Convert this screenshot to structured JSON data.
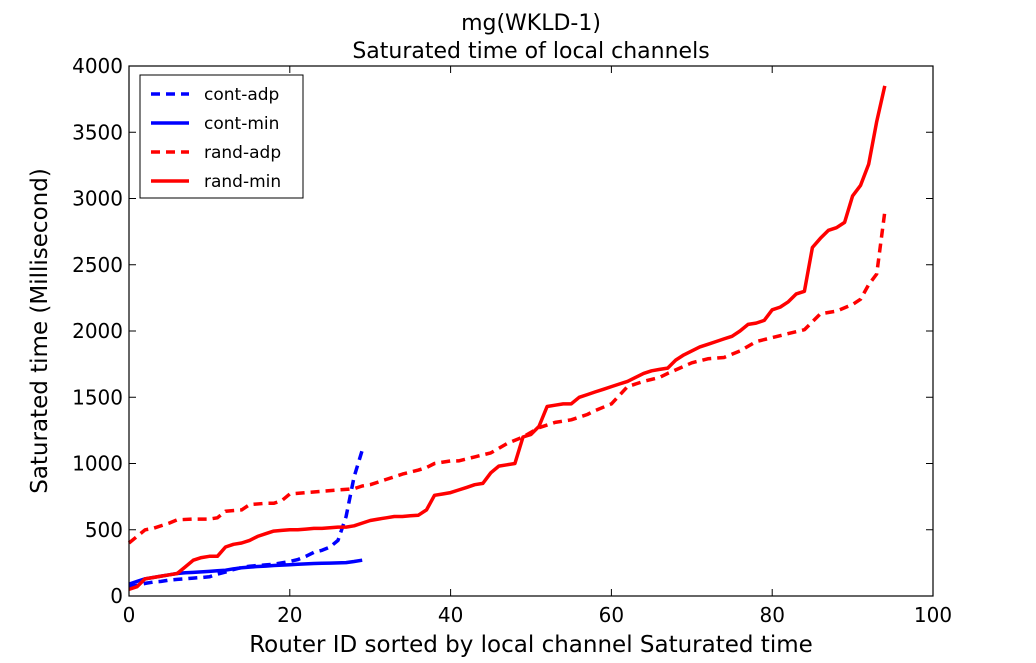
{
  "chart_data": {
    "type": "line",
    "title": "mg(WKLD-1)",
    "subtitle": "Saturated time of local channels",
    "xlabel": "Router ID sorted by local channel Saturated time",
    "ylabel": "Saturated time (Millisecond)",
    "xlim": [
      0,
      100
    ],
    "ylim": [
      0,
      4000
    ],
    "xticks": [
      0,
      20,
      40,
      60,
      80,
      100
    ],
    "yticks": [
      0,
      500,
      1000,
      1500,
      2000,
      2500,
      3000,
      3500,
      4000
    ],
    "grid": false,
    "legend_position": "top-left",
    "series": [
      {
        "name": "cont-adp",
        "color": "#0000ff",
        "style": "dashed",
        "x": [
          0,
          1,
          2,
          3,
          4,
          5,
          6,
          7,
          8,
          9,
          10,
          11,
          12,
          13,
          14,
          15,
          16,
          17,
          18,
          19,
          20,
          21,
          22,
          23,
          24,
          25,
          26,
          27,
          28,
          29
        ],
        "y": [
          70,
          80,
          95,
          105,
          110,
          120,
          125,
          130,
          135,
          140,
          145,
          165,
          180,
          200,
          215,
          225,
          230,
          235,
          240,
          250,
          260,
          275,
          300,
          330,
          345,
          370,
          420,
          600,
          900,
          1100
        ]
      },
      {
        "name": "cont-min",
        "color": "#0000ff",
        "style": "solid",
        "x": [
          0,
          1,
          2,
          3,
          4,
          5,
          6,
          7,
          8,
          9,
          10,
          11,
          12,
          13,
          14,
          15,
          16,
          17,
          18,
          19,
          20,
          21,
          22,
          23,
          24,
          25,
          26,
          27,
          28,
          29
        ],
        "y": [
          90,
          110,
          130,
          140,
          150,
          160,
          170,
          175,
          178,
          182,
          186,
          190,
          195,
          205,
          213,
          218,
          223,
          226,
          230,
          233,
          236,
          239,
          242,
          245,
          247,
          248,
          250,
          252,
          260,
          270
        ]
      },
      {
        "name": "rand-adp",
        "color": "#ff0000",
        "style": "dashed",
        "x": [
          0,
          2,
          3,
          5,
          6,
          8,
          10,
          11,
          12,
          14,
          15,
          17,
          18,
          19,
          20,
          22,
          24,
          26,
          28,
          29,
          30,
          32,
          34,
          36,
          37,
          38,
          40,
          41,
          43,
          45,
          47,
          49,
          51,
          53,
          55,
          57,
          58,
          60,
          62,
          64,
          66,
          67,
          70,
          72,
          74,
          76,
          78,
          80,
          82,
          84,
          86,
          88,
          90,
          91,
          92,
          93,
          94
        ],
        "y": [
          400,
          500,
          510,
          550,
          575,
          580,
          580,
          590,
          640,
          650,
          690,
          700,
          700,
          720,
          770,
          780,
          790,
          800,
          810,
          830,
          840,
          880,
          920,
          950,
          970,
          1000,
          1020,
          1020,
          1050,
          1080,
          1150,
          1200,
          1270,
          1310,
          1330,
          1370,
          1400,
          1450,
          1580,
          1620,
          1650,
          1680,
          1760,
          1790,
          1800,
          1850,
          1920,
          1950,
          1980,
          2010,
          2130,
          2150,
          2200,
          2240,
          2350,
          2430,
          2900
        ]
      },
      {
        "name": "rand-min",
        "color": "#ff0000",
        "style": "solid",
        "x": [
          0,
          1,
          2,
          3,
          4,
          5,
          6,
          7,
          8,
          9,
          10,
          11,
          12,
          13,
          14,
          15,
          16,
          17,
          18,
          19,
          20,
          21,
          22,
          23,
          24,
          25,
          26,
          27,
          28,
          29,
          30,
          31,
          32,
          33,
          34,
          35,
          36,
          37,
          38,
          39,
          40,
          41,
          42,
          43,
          44,
          45,
          46,
          47,
          48,
          49,
          50,
          51,
          52,
          53,
          54,
          55,
          56,
          57,
          58,
          59,
          60,
          61,
          62,
          63,
          64,
          65,
          66,
          67,
          68,
          69,
          70,
          71,
          72,
          73,
          74,
          75,
          76,
          77,
          78,
          79,
          80,
          81,
          82,
          83,
          84,
          85,
          86,
          87,
          88,
          89,
          90,
          91,
          92,
          93,
          94
        ],
        "y": [
          50,
          70,
          130,
          140,
          150,
          160,
          170,
          220,
          270,
          290,
          300,
          300,
          370,
          390,
          400,
          420,
          450,
          470,
          490,
          495,
          500,
          500,
          505,
          510,
          510,
          515,
          520,
          520,
          530,
          550,
          570,
          580,
          590,
          600,
          600,
          605,
          610,
          650,
          760,
          770,
          780,
          800,
          820,
          840,
          850,
          930,
          980,
          990,
          1000,
          1200,
          1220,
          1280,
          1430,
          1440,
          1450,
          1450,
          1500,
          1520,
          1540,
          1560,
          1580,
          1600,
          1620,
          1650,
          1680,
          1700,
          1710,
          1720,
          1780,
          1820,
          1850,
          1880,
          1900,
          1920,
          1940,
          1960,
          2000,
          2050,
          2060,
          2080,
          2160,
          2180,
          2220,
          2280,
          2300,
          2630,
          2700,
          2760,
          2780,
          2820,
          3020,
          3100,
          3260,
          3580,
          3850
        ]
      }
    ]
  }
}
